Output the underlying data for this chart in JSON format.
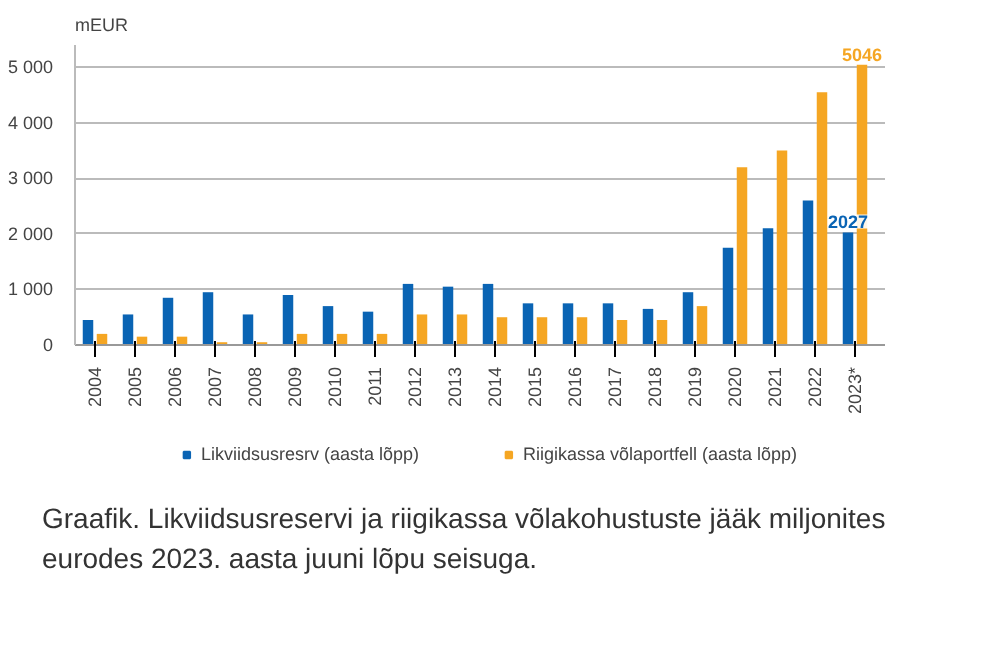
{
  "chart_data": {
    "type": "bar",
    "ylabel": "mEUR",
    "categories": [
      "2004",
      "2005",
      "2006",
      "2007",
      "2008",
      "2009",
      "2010",
      "2011",
      "2012",
      "2013",
      "2014",
      "2015",
      "2016",
      "2017",
      "2018",
      "2019",
      "2020",
      "2021",
      "2022",
      "2023*"
    ],
    "series": [
      {
        "name": "Likviidsusresrv (aasta lõpp)",
        "color": "#0a64b4",
        "values": [
          450,
          550,
          850,
          950,
          550,
          900,
          700,
          600,
          1100,
          1050,
          1100,
          750,
          750,
          750,
          650,
          950,
          1750,
          2100,
          2600,
          2027
        ],
        "value_labels": [
          null,
          null,
          null,
          null,
          null,
          null,
          null,
          null,
          null,
          null,
          null,
          null,
          null,
          null,
          null,
          null,
          null,
          null,
          null,
          "2027"
        ]
      },
      {
        "name": "Riigikassa võlaportfell (aasta lõpp)",
        "color": "#f5a623",
        "values": [
          200,
          150,
          150,
          50,
          50,
          200,
          200,
          200,
          550,
          550,
          500,
          500,
          500,
          450,
          450,
          700,
          3200,
          3500,
          4550,
          5046
        ],
        "value_labels": [
          null,
          null,
          null,
          null,
          null,
          null,
          null,
          null,
          null,
          null,
          null,
          null,
          null,
          null,
          null,
          null,
          null,
          null,
          null,
          "5046"
        ]
      }
    ],
    "ylim": [
      0,
      5400
    ],
    "yticks": [
      {
        "value": 0,
        "label": "0"
      },
      {
        "value": 1000,
        "label": "1 000"
      },
      {
        "value": 2000,
        "label": "2 000"
      },
      {
        "value": 3000,
        "label": "3 000"
      },
      {
        "value": 4000,
        "label": "4 000"
      },
      {
        "value": 5000,
        "label": "5 000"
      }
    ],
    "grid": "y",
    "legend": "bottom",
    "annotations": [
      "Graafik. Likviidsusreservi ja riigikassa võlakohustuste jääk miljonites eurodes 2023. aasta juuni lõpu seisuga."
    ]
  }
}
